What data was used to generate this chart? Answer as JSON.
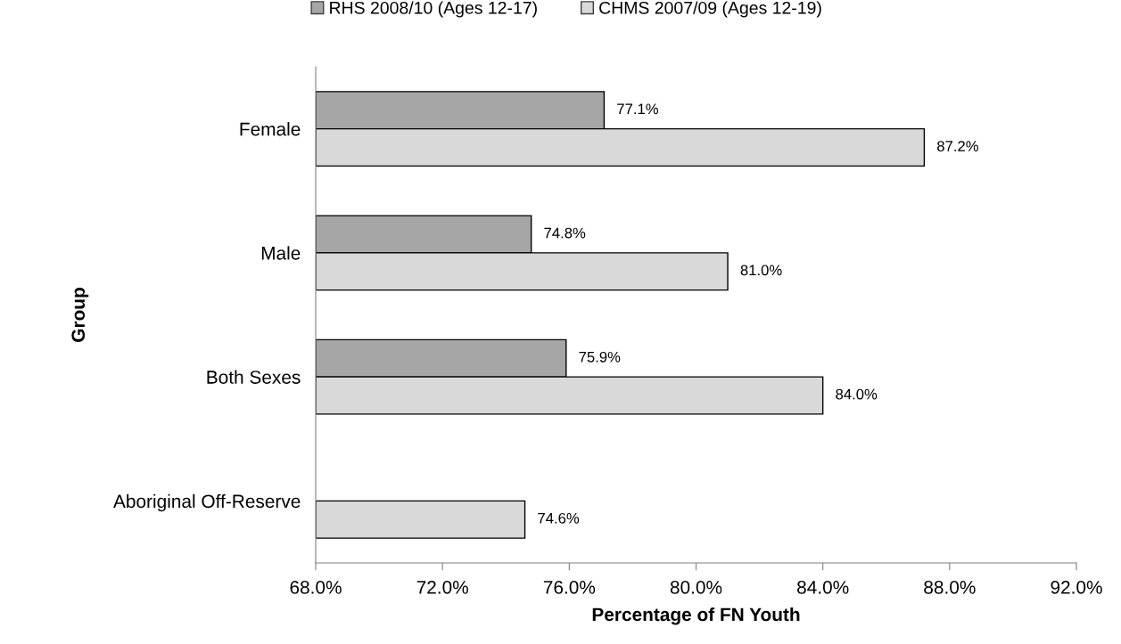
{
  "chart_data": {
    "type": "bar",
    "orientation": "horizontal",
    "xlabel": "Percentage of FN Youth",
    "ylabel": "Group",
    "categories": [
      "Female",
      "Male",
      "Both Sexes",
      "Aboriginal Off-Reserve"
    ],
    "series": [
      {
        "name": "RHS 2008/10 (Ages 12-17)",
        "color": "#a6a6a6",
        "values": [
          77.1,
          74.8,
          75.9,
          null
        ],
        "value_labels": [
          "77.1%",
          "74.8%",
          "75.9%",
          null
        ]
      },
      {
        "name": "CHMS 2007/09 (Ages 12-19)",
        "color": "#d9d9d9",
        "values": [
          87.2,
          81.0,
          84.0,
          74.6
        ],
        "value_labels": [
          "87.2%",
          "81.0%",
          "84.0%",
          "74.6%"
        ]
      }
    ],
    "xlim": [
      68,
      92
    ],
    "xticks": [
      {
        "value": 68,
        "label": "68.0%"
      },
      {
        "value": 72,
        "label": "72.0%"
      },
      {
        "value": 76,
        "label": "76.0%"
      },
      {
        "value": 80,
        "label": "80.0%"
      },
      {
        "value": 84,
        "label": "84.0%"
      },
      {
        "value": 88,
        "label": "88.0%"
      },
      {
        "value": 92,
        "label": "92.0%"
      }
    ],
    "grid": false,
    "legend": "top"
  }
}
